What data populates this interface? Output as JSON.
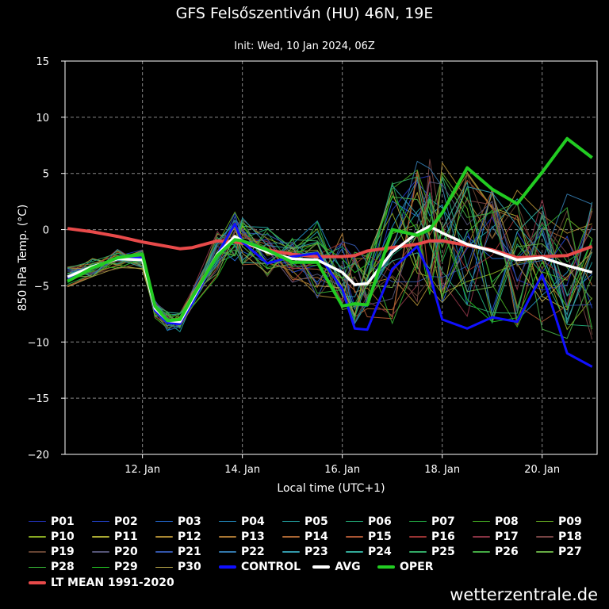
{
  "title": "GFS Felsőszentiván (HU) 46N, 19E",
  "subtitle": "Init: Wed, 10 Jan 2024, 06Z",
  "brand": "wetterzentrale.de",
  "colors": {
    "background": "#000000",
    "grid": "#888888",
    "control": "#1010ff",
    "avg": "#ffffff",
    "oper": "#22cc22",
    "lt_mean": "#e84a4a"
  },
  "chart_data": {
    "type": "line",
    "title": "GFS Felsőszentiván (HU) 46N, 19E",
    "subtitle": "Init: Wed, 10 Jan 2024, 06Z",
    "xlabel": "Local time (UTC+1)",
    "ylabel": "850 hPa Temp. (°C)",
    "x_tick_labels": [
      "12. Jan",
      "14. Jan",
      "16. Jan",
      "18. Jan",
      "20. Jan"
    ],
    "x_ticks_day": [
      12,
      14,
      16,
      18,
      20
    ],
    "xlim_day": [
      10.45,
      21.1
    ],
    "ylim": [
      -20,
      15
    ],
    "y_ticks": [
      15,
      10,
      5,
      0,
      -5,
      -10,
      -15,
      -20
    ],
    "grid": true,
    "legend_placement": "bottom",
    "x_day": [
      10.5,
      11.0,
      11.5,
      12.0,
      12.25,
      12.5,
      12.75,
      13.0,
      13.5,
      13.85,
      14.0,
      14.5,
      15.0,
      15.5,
      16.0,
      16.25,
      16.5,
      17.0,
      17.5,
      17.75,
      18.0,
      18.5,
      19.0,
      19.5,
      20.0,
      20.5,
      21.0
    ],
    "series": [
      {
        "name": "CONTROL",
        "values": [
          -4.3,
          -3.3,
          -2.6,
          -2.5,
          -7.2,
          -8.3,
          -8.4,
          -6.5,
          -2.2,
          0.5,
          -1.1,
          -3.0,
          -2.4,
          -2.1,
          -5.3,
          -8.8,
          -8.9,
          -3.5,
          -1.5,
          -4.0,
          -8.0,
          -8.8,
          -7.8,
          -8.2,
          -4.0,
          -11.0,
          -12.2
        ]
      },
      {
        "name": "AVG",
        "values": [
          -4.2,
          -3.3,
          -2.6,
          -2.7,
          -7.0,
          -8.1,
          -8.2,
          -6.2,
          -2.2,
          -0.6,
          -1.0,
          -2.0,
          -2.6,
          -2.7,
          -3.8,
          -4.9,
          -4.8,
          -2.0,
          -0.3,
          0.3,
          -0.3,
          -1.3,
          -1.9,
          -2.7,
          -2.5,
          -3.2,
          -3.8
        ]
      },
      {
        "name": "OPER",
        "values": [
          -4.6,
          -3.4,
          -2.5,
          -2.2,
          -6.8,
          -8.1,
          -8.0,
          -6.0,
          -2.3,
          -0.9,
          -1.0,
          -1.8,
          -2.9,
          -2.9,
          -6.8,
          -6.6,
          -6.7,
          0.0,
          -0.5,
          0.0,
          1.5,
          5.5,
          3.6,
          2.3,
          5.1,
          8.1,
          6.4
        ]
      },
      {
        "name": "LT MEAN 1991-2020",
        "values": [
          0.1,
          -0.2,
          -0.6,
          -1.1,
          -1.3,
          -1.5,
          -1.7,
          -1.6,
          -1.0,
          -1.1,
          -1.2,
          -1.8,
          -2.2,
          -2.4,
          -2.4,
          -2.3,
          -1.9,
          -1.6,
          -1.3,
          -1.0,
          -1.0,
          -1.4,
          -1.8,
          -2.5,
          -2.4,
          -2.3,
          -1.5
        ]
      }
    ],
    "members": [
      "P01",
      "P02",
      "P03",
      "P04",
      "P05",
      "P06",
      "P07",
      "P08",
      "P09",
      "P10",
      "P11",
      "P12",
      "P13",
      "P14",
      "P15",
      "P16",
      "P17",
      "P18",
      "P19",
      "P20",
      "P21",
      "P22",
      "P23",
      "P24",
      "P25",
      "P26",
      "P27",
      "P28",
      "P29",
      "P30"
    ],
    "member_colors": [
      "#2233bb",
      "#2244cc",
      "#2266cc",
      "#2288bb",
      "#22a0a0",
      "#22aa77",
      "#22aa44",
      "#44aa22",
      "#66aa22",
      "#88aa22",
      "#aaaa33",
      "#aa8833",
      "#aa7733",
      "#aa6633",
      "#aa5533",
      "#993333",
      "#883344",
      "#774444",
      "#664433",
      "#555577",
      "#3355aa",
      "#3377aa",
      "#3399aa",
      "#33aa99",
      "#33aa66",
      "#44aa44",
      "#66aa44",
      "#33aa33",
      "#22bb22",
      "#aa9944"
    ]
  },
  "legend": [
    {
      "label": "P01",
      "color": "#2233bb"
    },
    {
      "label": "P02",
      "color": "#2244cc"
    },
    {
      "label": "P03",
      "color": "#2266cc"
    },
    {
      "label": "P04",
      "color": "#2288bb"
    },
    {
      "label": "P05",
      "color": "#22a0a0"
    },
    {
      "label": "P06",
      "color": "#22aa77"
    },
    {
      "label": "P07",
      "color": "#22aa44"
    },
    {
      "label": "P08",
      "color": "#44aa22"
    },
    {
      "label": "P09",
      "color": "#66aa22"
    },
    {
      "label": "P10",
      "color": "#88aa22"
    },
    {
      "label": "P11",
      "color": "#aaaa33"
    },
    {
      "label": "P12",
      "color": "#aa8833"
    },
    {
      "label": "P13",
      "color": "#aa7733"
    },
    {
      "label": "P14",
      "color": "#aa6633"
    },
    {
      "label": "P15",
      "color": "#aa5533"
    },
    {
      "label": "P16",
      "color": "#993333"
    },
    {
      "label": "P17",
      "color": "#883344"
    },
    {
      "label": "P18",
      "color": "#774444"
    },
    {
      "label": "P19",
      "color": "#664433"
    },
    {
      "label": "P20",
      "color": "#555577"
    },
    {
      "label": "P21",
      "color": "#3355aa"
    },
    {
      "label": "P22",
      "color": "#3377aa"
    },
    {
      "label": "P23",
      "color": "#3399aa"
    },
    {
      "label": "P24",
      "color": "#33aa99"
    },
    {
      "label": "P25",
      "color": "#33aa66"
    },
    {
      "label": "P26",
      "color": "#44aa44"
    },
    {
      "label": "P27",
      "color": "#66aa44"
    },
    {
      "label": "P28",
      "color": "#33aa33"
    },
    {
      "label": "P29",
      "color": "#22bb22"
    },
    {
      "label": "P30",
      "color": "#aa9944"
    },
    {
      "label": "CONTROL",
      "color": "#1010ff",
      "thick": true
    },
    {
      "label": "AVG",
      "color": "#ffffff",
      "thick": true
    },
    {
      "label": "OPER",
      "color": "#22cc22",
      "thick": true
    },
    {
      "label": "LT MEAN 1991-2020",
      "color": "#e84a4a",
      "thick": true
    }
  ]
}
